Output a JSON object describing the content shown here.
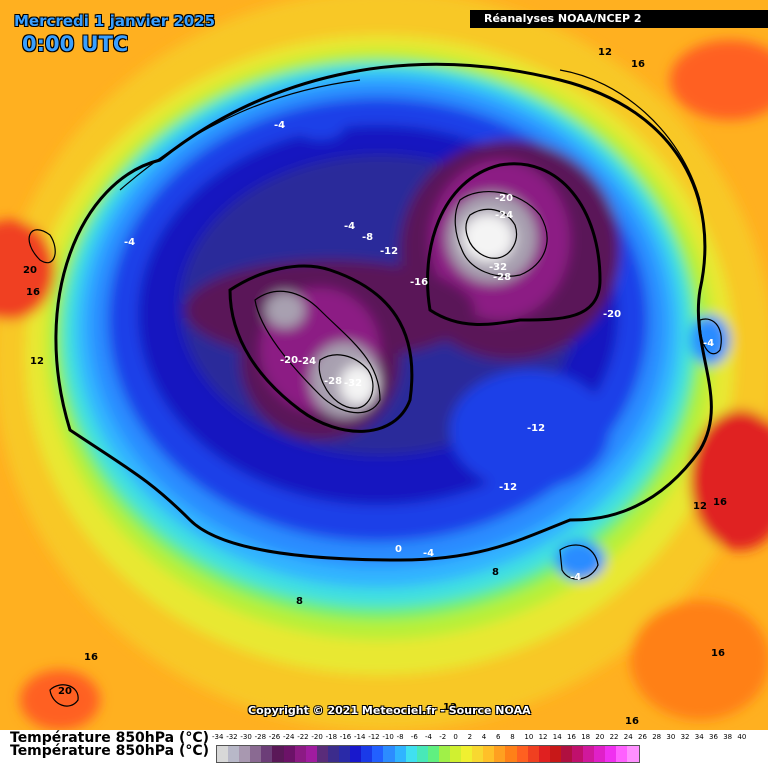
{
  "header": {
    "date": "Mercredi 1 janvier 2025",
    "time": "0:00 UTC"
  },
  "source": "Réanalyses NOAA/NCEP 2",
  "copyright": "Copyright © 2021 Meteociel.fr - Source NOAA",
  "legend": {
    "title": "Température 850hPa (°C)",
    "title_shadow": "Température 850hPa (°C)",
    "ticks": [
      "-34",
      "-32",
      "-30",
      "-28",
      "-26",
      "-24",
      "-22",
      "-20",
      "-18",
      "-16",
      "-14",
      "-12",
      "-10",
      "-8",
      "-6",
      "-4",
      "-2",
      "0",
      "2",
      "4",
      "6",
      "8",
      "10",
      "12",
      "14",
      "16",
      "18",
      "20",
      "22",
      "24",
      "26",
      "28",
      "30",
      "32",
      "34",
      "36",
      "38",
      "40"
    ],
    "colors": [
      "#d8d8d8",
      "#b8b8c8",
      "#a898b0",
      "#8a6a92",
      "#6c3e78",
      "#5a1858",
      "#6c1268",
      "#8c1a84",
      "#a01ca0",
      "#5a2c7a",
      "#3c2c8c",
      "#2a2aa8",
      "#1818cc",
      "#1a3ae8",
      "#2260ff",
      "#2c8cff",
      "#30b4ff",
      "#40e0f0",
      "#48e8b8",
      "#60f080",
      "#a0f048",
      "#d0f030",
      "#f0f030",
      "#f8d830",
      "#ffc028",
      "#ffa020",
      "#ff8018",
      "#ff6020",
      "#f04020",
      "#e02020",
      "#c81818",
      "#b01040",
      "#c0106c",
      "#d0189c",
      "#e020c8",
      "#f030f0",
      "#ff60ff",
      "#ff90ff"
    ]
  },
  "contour_labels": [
    {
      "text": "12",
      "tone": "dark"
    },
    {
      "text": "16",
      "tone": "dark"
    },
    {
      "text": "-4",
      "tone": "light"
    },
    {
      "text": "-4",
      "tone": "light"
    },
    {
      "text": "-4",
      "tone": "light"
    },
    {
      "text": "-8",
      "tone": "light"
    },
    {
      "text": "-12",
      "tone": "light"
    },
    {
      "text": "-16",
      "tone": "light"
    },
    {
      "text": "-20",
      "tone": "light"
    },
    {
      "text": "-24",
      "tone": "light"
    },
    {
      "text": "-32",
      "tone": "light"
    },
    {
      "text": "-28",
      "tone": "light"
    },
    {
      "text": "-20",
      "tone": "light"
    },
    {
      "text": "-20",
      "tone": "light"
    },
    {
      "text": "-24",
      "tone": "light"
    },
    {
      "text": "-28",
      "tone": "light"
    },
    {
      "text": "-32",
      "tone": "light"
    },
    {
      "text": "-4",
      "tone": "light"
    },
    {
      "text": "-12",
      "tone": "light"
    },
    {
      "text": "-12",
      "tone": "light"
    },
    {
      "text": "20",
      "tone": "dark"
    },
    {
      "text": "16",
      "tone": "dark"
    },
    {
      "text": "12",
      "tone": "dark"
    },
    {
      "text": "0",
      "tone": "light"
    },
    {
      "text": "-4",
      "tone": "light"
    },
    {
      "text": "8",
      "tone": "dark"
    },
    {
      "text": "-4",
      "tone": "light"
    },
    {
      "text": "12",
      "tone": "dark"
    },
    {
      "text": "16",
      "tone": "dark"
    },
    {
      "text": "8",
      "tone": "dark"
    },
    {
      "text": "16",
      "tone": "dark"
    },
    {
      "text": "20",
      "tone": "dark"
    },
    {
      "text": "16",
      "tone": "dark"
    },
    {
      "text": "16",
      "tone": "dark"
    },
    {
      "text": "12",
      "tone": "dark"
    }
  ]
}
